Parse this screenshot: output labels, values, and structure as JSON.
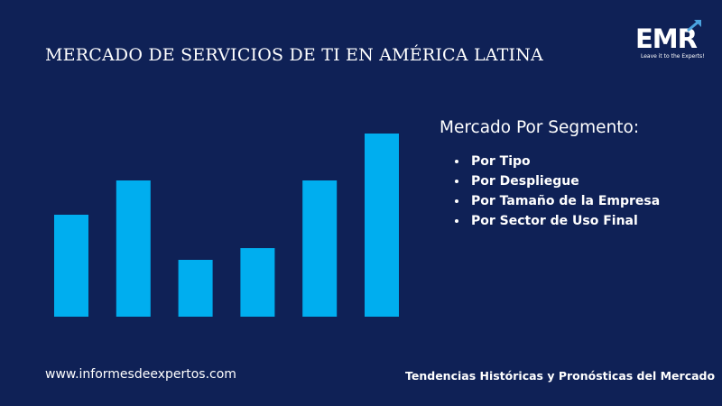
{
  "header": {
    "title": "MERCADO DE SERVICIOS DE TI EN AMÉRICA LATINA"
  },
  "logo": {
    "text": "EMR",
    "tagline": "Leave it to the Experts!",
    "icon": "arrow-up-right-icon"
  },
  "segments": {
    "heading": "Mercado Por Segmento:",
    "items": [
      "Por Tipo",
      "Por Despliegue",
      "Por Tamaño de la Empresa",
      "Por Sector de Uso Final"
    ]
  },
  "footer": {
    "website": "www.informesdeexpertos.com",
    "tagline": "Tendencias Históricas y Pronósticas del Mercado"
  },
  "colors": {
    "background": "#0f2156",
    "bar": "#00aeef",
    "text": "#ffffff"
  },
  "chart_data": {
    "type": "bar",
    "categories": [
      "",
      "",
      "",
      "",
      "",
      ""
    ],
    "values": [
      113,
      151,
      63,
      76,
      151,
      203
    ],
    "ylim": [
      0,
      203
    ],
    "title": "",
    "xlabel": "",
    "ylabel": "",
    "grid": false,
    "legend": "none"
  }
}
